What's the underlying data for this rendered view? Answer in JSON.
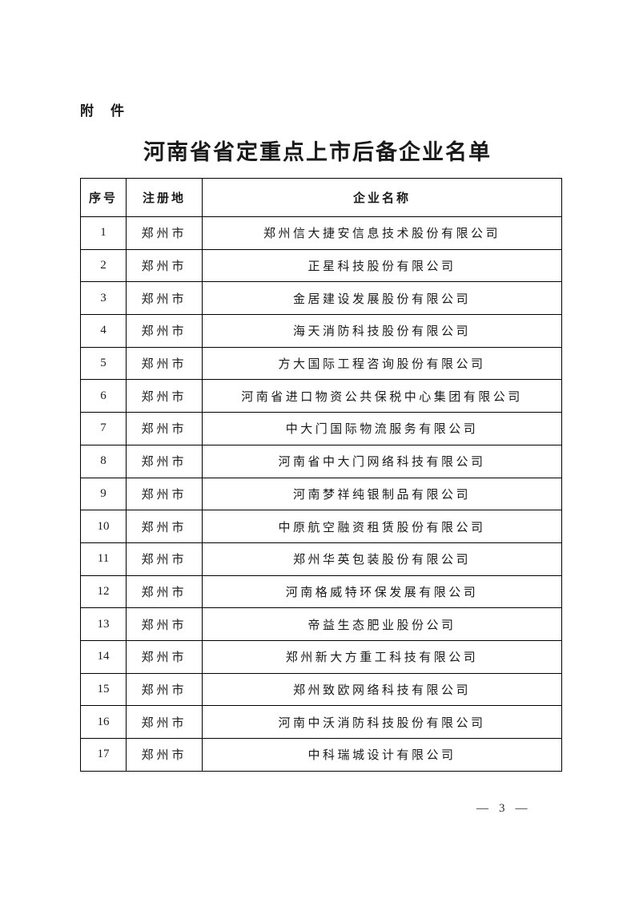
{
  "attachment_label": "附　件",
  "title": "河南省省定重点上市后备企业名单",
  "table": {
    "headers": [
      "序号",
      "注册地",
      "企业名称"
    ],
    "rows": [
      {
        "no": "1",
        "city": "郑州市",
        "company": "郑州信大捷安信息技术股份有限公司"
      },
      {
        "no": "2",
        "city": "郑州市",
        "company": "正星科技股份有限公司"
      },
      {
        "no": "3",
        "city": "郑州市",
        "company": "金居建设发展股份有限公司"
      },
      {
        "no": "4",
        "city": "郑州市",
        "company": "海天消防科技股份有限公司"
      },
      {
        "no": "5",
        "city": "郑州市",
        "company": "方大国际工程咨询股份有限公司"
      },
      {
        "no": "6",
        "city": "郑州市",
        "company": "河南省进口物资公共保税中心集团有限公司"
      },
      {
        "no": "7",
        "city": "郑州市",
        "company": "中大门国际物流服务有限公司"
      },
      {
        "no": "8",
        "city": "郑州市",
        "company": "河南省中大门网络科技有限公司"
      },
      {
        "no": "9",
        "city": "郑州市",
        "company": "河南梦祥纯银制品有限公司"
      },
      {
        "no": "10",
        "city": "郑州市",
        "company": "中原航空融资租赁股份有限公司"
      },
      {
        "no": "11",
        "city": "郑州市",
        "company": "郑州华英包装股份有限公司"
      },
      {
        "no": "12",
        "city": "郑州市",
        "company": "河南格威特环保发展有限公司"
      },
      {
        "no": "13",
        "city": "郑州市",
        "company": "帝益生态肥业股份公司"
      },
      {
        "no": "14",
        "city": "郑州市",
        "company": "郑州新大方重工科技有限公司"
      },
      {
        "no": "15",
        "city": "郑州市",
        "company": "郑州致欧网络科技有限公司"
      },
      {
        "no": "16",
        "city": "郑州市",
        "company": "河南中沃消防科技股份有限公司"
      },
      {
        "no": "17",
        "city": "郑州市",
        "company": "中科瑞城设计有限公司"
      }
    ]
  },
  "footer": {
    "left_dash": "—",
    "page_number": "3",
    "right_dash": "—"
  }
}
